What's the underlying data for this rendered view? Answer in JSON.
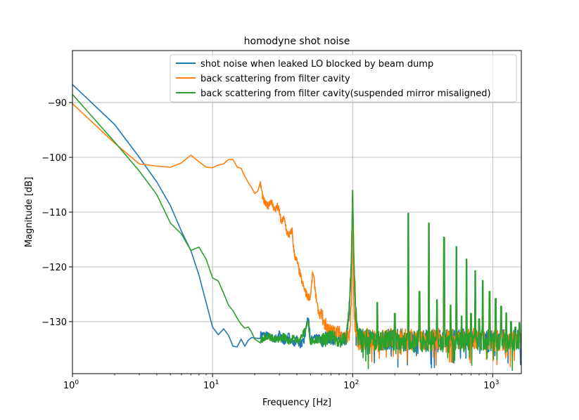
{
  "chart_data": {
    "type": "line",
    "title": "homodyne shot noise",
    "xlabel": "Frequency [Hz]",
    "ylabel": "Magnitude [dB]",
    "x_scale": "log",
    "xlim": [
      1,
      1600
    ],
    "ylim": [
      -139.5,
      -80.5
    ],
    "grid": true,
    "legend_position": "top-right",
    "x_ticks": [
      {
        "value": 1,
        "base": "10",
        "exp": "0"
      },
      {
        "value": 10,
        "base": "10",
        "exp": "1"
      },
      {
        "value": 100,
        "base": "10",
        "exp": "2"
      },
      {
        "value": 1000,
        "base": "10",
        "exp": "3"
      }
    ],
    "y_ticks": [
      {
        "value": -90,
        "label": "−90"
      },
      {
        "value": -100,
        "label": "−100"
      },
      {
        "value": -110,
        "label": "−110"
      },
      {
        "value": -120,
        "label": "−120"
      },
      {
        "value": -130,
        "label": "−130"
      }
    ],
    "series": [
      {
        "name": "shot noise when leaked LO blocked by beam dump",
        "color": "#1f77b4",
        "x": [
          1,
          2,
          3,
          4,
          5,
          6,
          7,
          8,
          9,
          10,
          11,
          12,
          13,
          14,
          15,
          16,
          17,
          18,
          19,
          20,
          22,
          24,
          26,
          28,
          30,
          32,
          35,
          38,
          40,
          42,
          45,
          48,
          50,
          55,
          60,
          70,
          80,
          90,
          95,
          98,
          100,
          102,
          105,
          110,
          120,
          150,
          200,
          250,
          300,
          400,
          500,
          700,
          1000,
          1300,
          1600
        ],
        "y": [
          -86.7,
          -94,
          -100,
          -104.5,
          -108.8,
          -113.5,
          -117,
          -121.5,
          -126.5,
          -131,
          -132.4,
          -131.3,
          -132.5,
          -134.5,
          -134.6,
          -133.2,
          -134.5,
          -133.4,
          -132.9,
          -133.0,
          -132.4,
          -132.4,
          -132.9,
          -133.2,
          -132.2,
          -133.8,
          -132.6,
          -134.0,
          -133.2,
          -134.2,
          -133.6,
          -129.0,
          -133.4,
          -132.6,
          -133.4,
          -132.8,
          -133.3,
          -133.2,
          -128,
          -119,
          -106,
          -119,
          -129,
          -133.2,
          -132.8,
          -133.6,
          -133.0,
          -133.6,
          -133.2,
          -133.4,
          -133.1,
          -133.3,
          -133.6,
          -133.2,
          -133.5
        ]
      },
      {
        "name": "back scattering from filter cavity",
        "color": "#ff7f0e",
        "x": [
          1,
          2,
          3,
          4,
          5,
          6,
          7,
          8,
          9,
          10,
          11,
          12,
          13,
          14,
          15,
          16,
          17,
          18,
          19,
          20,
          21,
          22,
          23,
          24,
          25,
          26,
          27,
          28,
          29,
          30,
          31,
          32,
          33,
          34,
          35,
          36,
          37,
          38,
          39,
          40,
          42,
          44,
          46,
          48,
          50,
          52,
          54,
          56,
          58,
          60,
          62,
          65,
          70,
          75,
          80,
          85,
          90,
          95,
          98,
          100,
          102,
          105,
          110,
          120,
          150,
          200,
          250,
          300,
          400,
          500,
          700,
          1000,
          1300,
          1600
        ],
        "y": [
          -90.2,
          -97.4,
          -101.2,
          -101.6,
          -101.8,
          -101.0,
          -99.6,
          -100.8,
          -101.8,
          -101.9,
          -101.4,
          -101.2,
          -100.4,
          -100.4,
          -101.8,
          -102.0,
          -103.5,
          -104.6,
          -105.5,
          -106.6,
          -106.2,
          -104.9,
          -107.7,
          -108.7,
          -108.8,
          -107.8,
          -108.9,
          -109.6,
          -109.0,
          -109.9,
          -112.1,
          -111.0,
          -112.0,
          -113.8,
          -114.2,
          -114.0,
          -113.3,
          -117.0,
          -118.4,
          -118.9,
          -121.2,
          -123.2,
          -124.6,
          -125.5,
          -125.4,
          -120.9,
          -124.0,
          -127.3,
          -129.0,
          -128.1,
          -130.3,
          -130.7,
          -131.8,
          -131.9,
          -132.0,
          -132.8,
          -132.5,
          -132.6,
          -127,
          -106,
          -126,
          -132,
          -133.4,
          -132.9,
          -133.5,
          -133.0,
          -133.2,
          -133.5,
          -133.1,
          -133.3,
          -133.0,
          -133.6,
          -133.3,
          -133.2
        ]
      },
      {
        "name": "back scattering from filter cavity(suspended mirror misaligned)",
        "color": "#2ca02c",
        "x": [
          1,
          2,
          3,
          4,
          5,
          6,
          7,
          8,
          9,
          10,
          11,
          12,
          13,
          14,
          15,
          16,
          17,
          18,
          19,
          20,
          22,
          24,
          26,
          28,
          30,
          32,
          35,
          38,
          40,
          42,
          45,
          48,
          50,
          55,
          60,
          70,
          80,
          90,
          95,
          98,
          100,
          102,
          105,
          110,
          120,
          150,
          200,
          250,
          300,
          400,
          500,
          700,
          1000,
          1300,
          1600
        ],
        "y": [
          -88.5,
          -97.2,
          -102.5,
          -106.8,
          -112.0,
          -114.0,
          -117.0,
          -116.4,
          -118.6,
          -122.0,
          -122.6,
          -124.8,
          -127.0,
          -128.0,
          -129.4,
          -130.5,
          -131.2,
          -131.0,
          -131.9,
          -133.2,
          -133.4,
          -132.6,
          -132.8,
          -133.3,
          -133.4,
          -132.6,
          -133.5,
          -133.0,
          -133.6,
          -133.2,
          -132.0,
          -130.0,
          -133.6,
          -133.2,
          -133.5,
          -132.9,
          -133.4,
          -133.2,
          -127,
          -118,
          -106,
          -118,
          -128,
          -133.0,
          -133.3,
          -133.5,
          -133.4,
          -133.7,
          -133.4,
          -133.6,
          -133.3,
          -133.5,
          -133.3,
          -133.6,
          -133.4
        ]
      }
    ],
    "harmonics": [
      {
        "x": 100,
        "peak": -106.2
      },
      {
        "x": 150,
        "peak": -126.5
      },
      {
        "x": 200,
        "peak": -128.5
      },
      {
        "x": 250,
        "peak": -110.2
      },
      {
        "x": 300,
        "peak": -124.5
      },
      {
        "x": 350,
        "peak": -112.0
      },
      {
        "x": 400,
        "peak": -126.0
      },
      {
        "x": 450,
        "peak": -114.6
      },
      {
        "x": 500,
        "peak": -127.0
      },
      {
        "x": 550,
        "peak": -116.3
      },
      {
        "x": 600,
        "peak": -129.0
      },
      {
        "x": 650,
        "peak": -118.6
      },
      {
        "x": 700,
        "peak": -128.5
      },
      {
        "x": 750,
        "peak": -120.7
      },
      {
        "x": 800,
        "peak": -129.5
      },
      {
        "x": 850,
        "peak": -122.5
      },
      {
        "x": 950,
        "peak": -124.5
      },
      {
        "x": 1050,
        "peak": -125.8
      },
      {
        "x": 1150,
        "peak": -127.2
      },
      {
        "x": 1250,
        "peak": -128.4
      },
      {
        "x": 1350,
        "peak": -130.0
      },
      {
        "x": 1450,
        "peak": -131.0
      },
      {
        "x": 1550,
        "peak": -130.2
      }
    ]
  }
}
